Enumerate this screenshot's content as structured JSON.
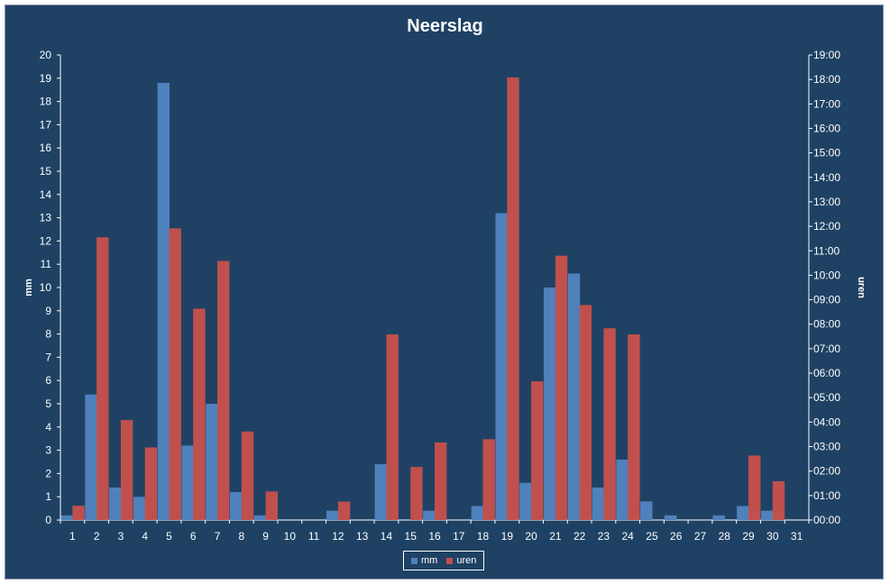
{
  "chart_data": {
    "type": "bar",
    "title": "Neerslag",
    "categories": [
      "1",
      "2",
      "3",
      "4",
      "5",
      "6",
      "7",
      "8",
      "9",
      "10",
      "11",
      "12",
      "13",
      "14",
      "15",
      "16",
      "17",
      "18",
      "19",
      "20",
      "21",
      "22",
      "23",
      "24",
      "25",
      "26",
      "27",
      "28",
      "29",
      "30",
      "31"
    ],
    "series": [
      {
        "name": "mm",
        "axis": "left",
        "color": "#4f81bd",
        "values": [
          0.2,
          5.4,
          1.4,
          1.0,
          18.8,
          3.2,
          5.0,
          1.2,
          0.2,
          0,
          0,
          0.4,
          0,
          2.4,
          0,
          0.4,
          0,
          0.6,
          13.2,
          1.6,
          10.0,
          10.6,
          1.4,
          2.6,
          0.8,
          0.2,
          0,
          0.2,
          0.6,
          0.4,
          0
        ]
      },
      {
        "name": "uren",
        "axis": "right",
        "color": "#c0504d",
        "values": [
          "00:35",
          "11:33",
          "04:05",
          "02:58",
          "11:55",
          "08:38",
          "10:35",
          "03:37",
          "01:10",
          "00:00",
          "00:00",
          "00:45",
          "00:00",
          "07:35",
          "02:10",
          "03:10",
          "00:00",
          "03:18",
          "18:05",
          "05:40",
          "10:48",
          "08:47",
          "07:50",
          "07:35",
          "00:00",
          "00:00",
          "00:00",
          "00:00",
          "02:38",
          "01:35",
          "00:00"
        ]
      }
    ],
    "ylabel": "mm",
    "ylim": [
      0,
      20
    ],
    "yticks": [
      "0",
      "1",
      "2",
      "3",
      "4",
      "5",
      "6",
      "7",
      "8",
      "9",
      "10",
      "11",
      "12",
      "13",
      "14",
      "15",
      "16",
      "17",
      "18",
      "19",
      "20"
    ],
    "y2label": "uren",
    "y2lim": [
      "00:00",
      "19:00"
    ],
    "y2ticks": [
      "00:00",
      "01:00",
      "02:00",
      "03:00",
      "04:00",
      "05:00",
      "06:00",
      "07:00",
      "08:00",
      "09:00",
      "10:00",
      "11:00",
      "12:00",
      "13:00",
      "14:00",
      "15:00",
      "16:00",
      "17:00",
      "18:00",
      "19:00"
    ],
    "grid": false,
    "legend_position": "bottom"
  },
  "colors": {
    "background": "#1f4264",
    "axis": "#ffffff"
  }
}
